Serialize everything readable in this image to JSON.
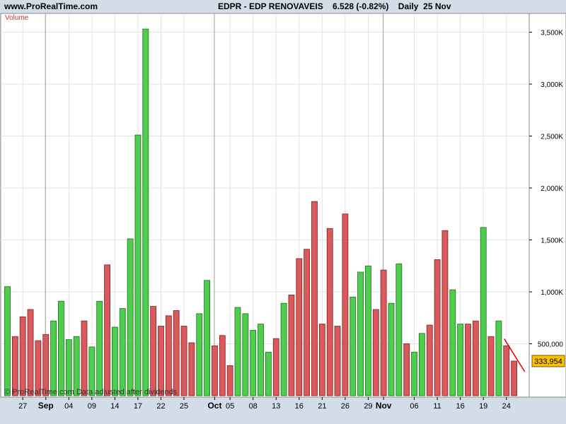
{
  "header": {
    "site": "www.ProRealTime.com",
    "instrument": "EDPR - EDP RENOVAVEIS",
    "price": "6.528 (-0.82%)",
    "period": "Daily",
    "date": "25 Nov"
  },
  "panel_label": "Volume",
  "footnote": "© ProRealTime.com Data adjusted after dividends",
  "last_value_label": "333,954",
  "colors": {
    "up": "#4fcd4f",
    "down": "#d9595c",
    "up_stroke": "#1d6e1d",
    "down_stroke": "#7a2222",
    "last_value_bg": "#ffc000",
    "trend_line": "#e00000"
  },
  "chart_data": {
    "type": "bar",
    "ylabel": "",
    "ylim": [
      0,
      3650000
    ],
    "yticks": [
      500000,
      1000000,
      1500000,
      2000000,
      2500000,
      3000000,
      3500000
    ],
    "ytick_labels": [
      "500,000",
      "1,000K",
      "1,500K",
      "2,000K",
      "2,500K",
      "3,000K",
      "3,500K"
    ],
    "x_labels": [
      {
        "index": 2,
        "text": "27"
      },
      {
        "index": 5,
        "text": "Sep",
        "month": true
      },
      {
        "index": 8,
        "text": "04"
      },
      {
        "index": 11,
        "text": "09"
      },
      {
        "index": 14,
        "text": "14"
      },
      {
        "index": 17,
        "text": "17"
      },
      {
        "index": 20,
        "text": "22"
      },
      {
        "index": 23,
        "text": "25"
      },
      {
        "index": 27,
        "text": "Oct",
        "month": true
      },
      {
        "index": 29,
        "text": "05"
      },
      {
        "index": 32,
        "text": "08"
      },
      {
        "index": 35,
        "text": "13"
      },
      {
        "index": 38,
        "text": "16"
      },
      {
        "index": 41,
        "text": "21"
      },
      {
        "index": 44,
        "text": "26"
      },
      {
        "index": 47,
        "text": "29"
      },
      {
        "index": 49,
        "text": "Nov",
        "month": true
      },
      {
        "index": 53,
        "text": "06"
      },
      {
        "index": 56,
        "text": "11"
      },
      {
        "index": 59,
        "text": "16"
      },
      {
        "index": 62,
        "text": "19"
      },
      {
        "index": 65,
        "text": "24"
      }
    ],
    "month_separators": [
      5,
      27,
      49
    ],
    "values": [
      1050000,
      570000,
      760000,
      830000,
      530000,
      590000,
      720000,
      910000,
      540000,
      570000,
      720000,
      470000,
      910000,
      1260000,
      660000,
      840000,
      1510000,
      2510000,
      3530000,
      860000,
      670000,
      770000,
      820000,
      670000,
      510000,
      790000,
      1110000,
      480000,
      580000,
      290000,
      850000,
      790000,
      630000,
      690000,
      420000,
      550000,
      890000,
      970000,
      1320000,
      1410000,
      1870000,
      690000,
      1610000,
      670000,
      1750000,
      950000,
      1190000,
      1250000,
      830000,
      1210000,
      890000,
      1270000,
      500000,
      420000,
      600000,
      680000,
      1310000,
      1590000,
      1020000,
      690000,
      690000,
      720000,
      1620000,
      570000,
      720000,
      480000,
      333954
    ],
    "directions": [
      "up",
      "down",
      "down",
      "down",
      "down",
      "down",
      "up",
      "up",
      "up",
      "up",
      "down",
      "up",
      "up",
      "down",
      "up",
      "up",
      "up",
      "up",
      "up",
      "down",
      "down",
      "down",
      "down",
      "down",
      "down",
      "up",
      "up",
      "down",
      "down",
      "down",
      "up",
      "up",
      "up",
      "up",
      "up",
      "down",
      "up",
      "down",
      "down",
      "down",
      "down",
      "down",
      "down",
      "down",
      "down",
      "up",
      "up",
      "up",
      "down",
      "down",
      "up",
      "up",
      "down",
      "up",
      "up",
      "down",
      "down",
      "down",
      "up",
      "up",
      "down",
      "down",
      "up",
      "down",
      "up",
      "down",
      "down"
    ],
    "grid": true
  }
}
